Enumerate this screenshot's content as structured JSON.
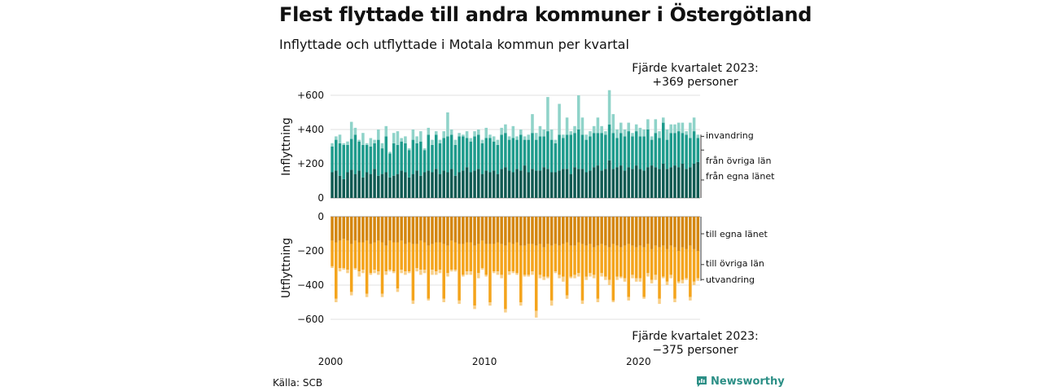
{
  "title": "Flest flyttade till andra kommuner i Östergötland",
  "subtitle": "Inflyttade och utflyttade i Motala kommun per kvartal",
  "annotation_top": {
    "line1": "Fjärde kvartalet 2023:",
    "line2": "+369 personer"
  },
  "annotation_bottom": {
    "line1": "Fjärde kvartalet 2023:",
    "line2": "−375 personer"
  },
  "source": "Källa: SCB",
  "brand": "Newsworthy",
  "colors": {
    "in_egna": "#0f5a52",
    "in_ovriga": "#1e9b8c",
    "in_invandring": "#8fd3c9",
    "ut_egna": "#d4860e",
    "ut_ovriga": "#f4a41c",
    "ut_utvandring": "#f8cf88",
    "brand": "#2c8f86"
  },
  "chart_data": [
    {
      "type": "bar",
      "stacked": true,
      "ylabel": "Inflyttning",
      "ylim": [
        0,
        600
      ],
      "yticks": [
        "0",
        "+200",
        "+400",
        "+600"
      ],
      "xticks": [
        "2000",
        "2010",
        "2020"
      ],
      "x_start": "2000 Q1",
      "x_end": "2023 Q4",
      "series": [
        {
          "name": "från egna länet",
          "color": "#0f5a52",
          "values": [
            150,
            160,
            130,
            110,
            150,
            165,
            140,
            160,
            120,
            150,
            140,
            170,
            130,
            140,
            150,
            120,
            130,
            140,
            160,
            150,
            120,
            140,
            160,
            130,
            150,
            160,
            150,
            170,
            140,
            160,
            150,
            170,
            130,
            150,
            160,
            180,
            150,
            160,
            170,
            140,
            160,
            150,
            160,
            140,
            170,
            180,
            160,
            150,
            170,
            160,
            190,
            150,
            170,
            160,
            160,
            180,
            170,
            150,
            150,
            160,
            170,
            170,
            140,
            180,
            170,
            170,
            150,
            160,
            180,
            190,
            160,
            170,
            220,
            170,
            180,
            190,
            160,
            180,
            170,
            190,
            170,
            160,
            180,
            190,
            180,
            170,
            200,
            170,
            180,
            190,
            180,
            200,
            170,
            180,
            200,
            210
          ]
        },
        {
          "name": "från övriga län",
          "color": "#1e9b8c",
          "values": [
            150,
            180,
            190,
            200,
            160,
            180,
            230,
            170,
            190,
            160,
            160,
            150,
            210,
            150,
            210,
            140,
            190,
            170,
            170,
            170,
            160,
            200,
            160,
            200,
            130,
            210,
            160,
            200,
            180,
            190,
            210,
            200,
            180,
            210,
            200,
            170,
            180,
            200,
            200,
            180,
            190,
            200,
            170,
            170,
            200,
            200,
            180,
            200,
            170,
            210,
            150,
            190,
            210,
            180,
            200,
            180,
            220,
            190,
            170,
            210,
            180,
            200,
            230,
            200,
            230,
            200,
            190,
            200,
            200,
            190,
            220,
            200,
            210,
            210,
            170,
            190,
            200,
            210,
            190,
            200,
            190,
            200,
            220,
            150,
            200,
            180,
            240,
            170,
            200,
            190,
            210,
            180,
            200,
            170,
            190,
            140
          ]
        },
        {
          "name": "invandring",
          "color": "#8fd3c9",
          "values": [
            20,
            20,
            50,
            10,
            20,
            100,
            40,
            10,
            70,
            10,
            50,
            20,
            60,
            30,
            60,
            10,
            60,
            80,
            20,
            40,
            10,
            60,
            40,
            60,
            10,
            40,
            30,
            20,
            20,
            40,
            140,
            30,
            30,
            20,
            10,
            40,
            20,
            30,
            30,
            20,
            60,
            20,
            30,
            30,
            40,
            50,
            20,
            70,
            20,
            30,
            20,
            30,
            110,
            40,
            60,
            40,
            200,
            60,
            20,
            180,
            20,
            100,
            20,
            40,
            200,
            100,
            30,
            30,
            40,
            90,
            40,
            20,
            200,
            110,
            50,
            60,
            40,
            50,
            20,
            40,
            50,
            40,
            60,
            20,
            80,
            40,
            30,
            60,
            50,
            50,
            50,
            60,
            20,
            90,
            80,
            20
          ]
        }
      ]
    },
    {
      "type": "bar",
      "stacked": true,
      "ylabel": "Utflyttning",
      "ylim": [
        -600,
        0
      ],
      "yticks": [
        "0",
        "−200",
        "−400",
        "−600"
      ],
      "xticks": [
        "2000",
        "2010",
        "2020"
      ],
      "x_start": "2000 Q1",
      "x_end": "2023 Q4",
      "series": [
        {
          "name": "till egna länet",
          "color": "#d4860e",
          "values": [
            -140,
            -150,
            -140,
            -130,
            -140,
            -160,
            -140,
            -150,
            -150,
            -140,
            -160,
            -150,
            -140,
            -150,
            -170,
            -140,
            -150,
            -150,
            -140,
            -160,
            -150,
            -160,
            -160,
            -140,
            -150,
            -170,
            -160,
            -150,
            -150,
            -160,
            -170,
            -140,
            -150,
            -160,
            -160,
            -150,
            -150,
            -170,
            -160,
            -140,
            -160,
            -160,
            -160,
            -150,
            -160,
            -170,
            -150,
            -160,
            -150,
            -170,
            -170,
            -160,
            -160,
            -170,
            -160,
            -180,
            -160,
            -170,
            -160,
            -170,
            -160,
            -150,
            -170,
            -170,
            -150,
            -160,
            -170,
            -160,
            -180,
            -170,
            -160,
            -170,
            -180,
            -160,
            -170,
            -180,
            -170,
            -160,
            -170,
            -180,
            -170,
            -180,
            -160,
            -190,
            -170,
            -180,
            -170,
            -190,
            -170,
            -180,
            -200,
            -180,
            -190,
            -170,
            -190,
            -200
          ]
        },
        {
          "name": "till övriga län",
          "color": "#f4a41c",
          "values": [
            -150,
            -330,
            -160,
            -170,
            -170,
            -280,
            -160,
            -170,
            -160,
            -310,
            -170,
            -160,
            -180,
            -300,
            -150,
            -170,
            -170,
            -270,
            -170,
            -160,
            -170,
            -330,
            -140,
            -170,
            -160,
            -310,
            -150,
            -170,
            -160,
            -320,
            -160,
            -170,
            -160,
            -330,
            -180,
            -170,
            -170,
            -350,
            -170,
            -160,
            -180,
            -340,
            -160,
            -170,
            -180,
            -370,
            -170,
            -160,
            -180,
            -330,
            -170,
            -180,
            -160,
            -380,
            -180,
            -170,
            -190,
            -320,
            -160,
            -170,
            -190,
            -310,
            -180,
            -170,
            -180,
            -330,
            -180,
            -170,
            -160,
            -310,
            -170,
            -180,
            -190,
            -330,
            -180,
            -170,
            -190,
            -310,
            -170,
            -180,
            -190,
            -290,
            -170,
            -180,
            -170,
            -300,
            -180,
            -190,
            -170,
            -300,
            -180,
            -190,
            -170,
            -300,
            -190,
            -160
          ]
        },
        {
          "name": "utvandring",
          "color": "#f8cf88",
          "values": [
            -10,
            -20,
            -20,
            -10,
            -20,
            -20,
            -10,
            -30,
            -20,
            -20,
            -10,
            -20,
            -20,
            -20,
            -20,
            -10,
            -10,
            -20,
            -20,
            -20,
            -10,
            -20,
            -20,
            -30,
            -20,
            -10,
            -30,
            -20,
            -20,
            -20,
            -20,
            -10,
            -10,
            -20,
            -10,
            -20,
            -20,
            -20,
            -30,
            -10,
            -10,
            -20,
            -10,
            -20,
            -20,
            -20,
            -20,
            -10,
            -10,
            -20,
            -10,
            -10,
            -20,
            -40,
            -20,
            -20,
            -10,
            -30,
            -10,
            -20,
            -30,
            -20,
            -10,
            -20,
            -20,
            -20,
            -20,
            -20,
            -20,
            -20,
            -20,
            -20,
            -30,
            -10,
            -20,
            -10,
            -20,
            -20,
            -20,
            -20,
            -20,
            -10,
            -20,
            -20,
            -30,
            -30,
            -10,
            -20,
            -20,
            -20,
            -10,
            -20,
            -10,
            -20,
            -20,
            -15
          ]
        }
      ]
    }
  ]
}
